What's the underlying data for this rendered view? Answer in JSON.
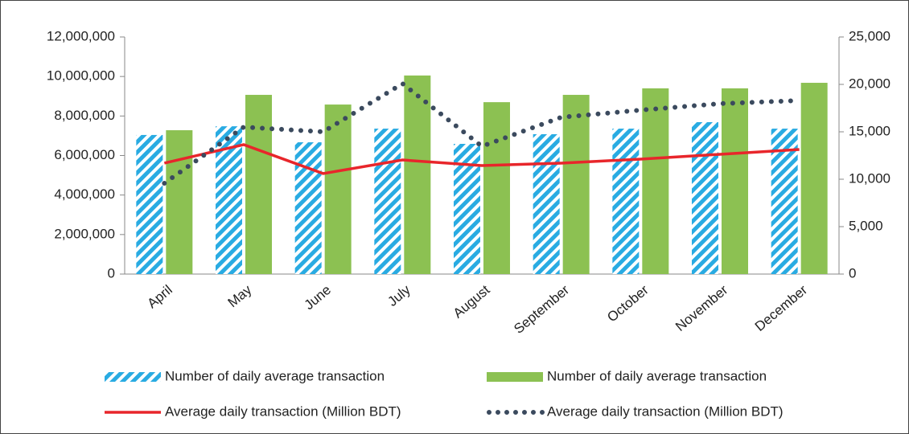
{
  "chart_data": {
    "type": "bar-line",
    "categories": [
      "April",
      "May",
      "June",
      "July",
      "August",
      "September",
      "October",
      "November",
      "December"
    ],
    "series": [
      {
        "name": "Number of daily average transaction",
        "type": "bar",
        "style": "hatched",
        "color": "#29abe2",
        "axis": "y",
        "values": [
          7040000,
          7480000,
          6670000,
          7360000,
          6590000,
          7080000,
          7360000,
          7690000,
          7360000
        ]
      },
      {
        "name": "Number of daily average transaction",
        "type": "bar",
        "style": "solid",
        "color": "#8cc152",
        "axis": "y",
        "values": [
          7280000,
          9070000,
          8580000,
          10050000,
          8700000,
          9070000,
          9400000,
          9400000,
          9680000
        ]
      },
      {
        "name": "Average daily transaction (Million BDT)",
        "type": "line",
        "style": "solid",
        "color": "#e8262b",
        "axis": "y2",
        "values": [
          11700,
          13650,
          10600,
          12030,
          11440,
          11700,
          12120,
          12630,
          13140
        ]
      },
      {
        "name": "Average daily transaction (Million BDT)",
        "type": "line",
        "style": "dotted",
        "color": "#3b4a5e",
        "axis": "y2",
        "values": [
          9580,
          15500,
          15000,
          20080,
          13470,
          16530,
          17290,
          17970,
          18300
        ]
      }
    ],
    "ylim": [
      0,
      12000000
    ],
    "yticks": [
      0,
      {
        "value": 2000000,
        "label": "2,000,000"
      },
      {
        "value": 4000000,
        "label": "4,000,000"
      },
      {
        "value": 6000000,
        "label": "6,000,000"
      },
      {
        "value": 8000000,
        "label": "8,000,000"
      },
      {
        "value": 10000000,
        "label": "10,000,000"
      },
      {
        "value": 12000000,
        "label": "12,000,000"
      }
    ],
    "y2lim": [
      0,
      25000
    ],
    "y2ticks": [
      0,
      {
        "value": 5000,
        "label": "5,000"
      },
      {
        "value": 10000,
        "label": "10,000"
      },
      {
        "value": 15000,
        "label": "15,000"
      },
      {
        "value": 20000,
        "label": "20,000"
      },
      {
        "value": 25000,
        "label": "25,000"
      }
    ],
    "grid": false,
    "legend": "bottom"
  }
}
